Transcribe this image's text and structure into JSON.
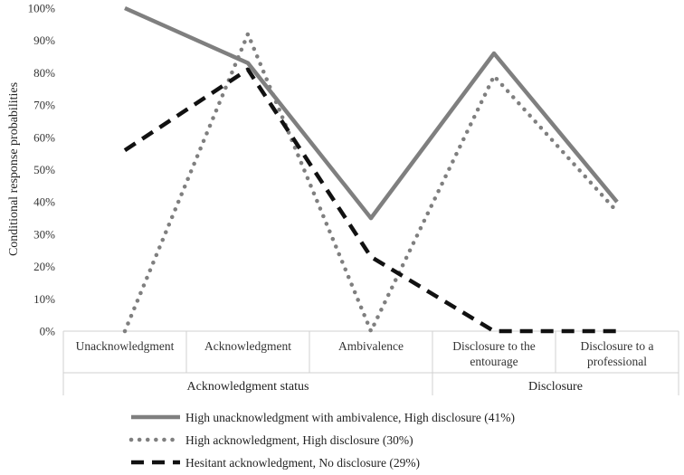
{
  "chart_data": {
    "type": "line",
    "ylabel": "Conditional response probabilities",
    "ylim": [
      0,
      100
    ],
    "y_ticks": [
      "0%",
      "10%",
      "20%",
      "30%",
      "40%",
      "50%",
      "60%",
      "70%",
      "80%",
      "90%",
      "100%"
    ],
    "categories": [
      [
        "Unacknowledgment"
      ],
      [
        "Acknowledgment"
      ],
      [
        "Ambivalence"
      ],
      [
        "Disclosure to the",
        "entourage"
      ],
      [
        "Disclosure to a",
        "professional"
      ]
    ],
    "groups": [
      {
        "label": "Acknowledgment status",
        "span": [
          0,
          2
        ]
      },
      {
        "label": "Disclosure",
        "span": [
          3,
          4
        ]
      }
    ],
    "series": [
      {
        "name": "High unacknowledgment with ambivalence, High disclosure (41%)",
        "values": [
          100,
          83,
          35,
          86,
          40
        ],
        "color": "#7f7f7f",
        "style": "solid"
      },
      {
        "name": "High acknowledgment, High disclosure (30%)",
        "values": [
          0,
          92,
          0,
          79,
          37
        ],
        "color": "#7f7f7f",
        "style": "dotted"
      },
      {
        "name": "Hesitant acknowledgment, No disclosure (29%)",
        "values": [
          56,
          81,
          23,
          0,
          0
        ],
        "color": "#111111",
        "style": "dashed"
      }
    ],
    "grid": false,
    "legend_position": "bottom"
  }
}
